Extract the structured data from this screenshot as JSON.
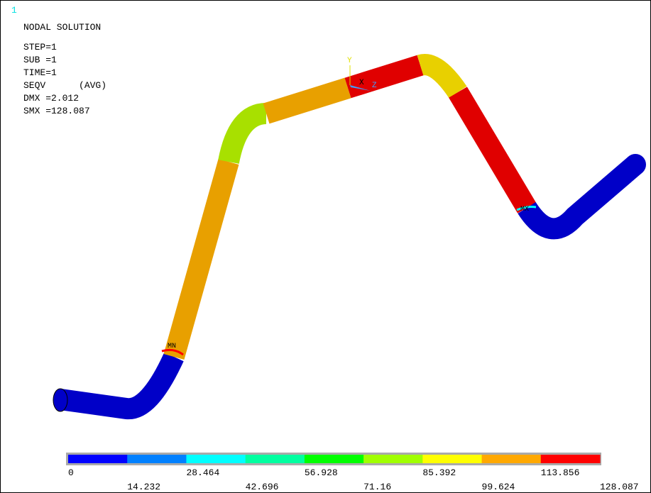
{
  "window_number": "1",
  "header": {
    "title": "NODAL SOLUTION",
    "lines": [
      "STEP=1",
      "SUB =1",
      "TIME=1",
      "SEQV      (AVG)",
      "DMX =2.012",
      "SMX =128.087"
    ]
  },
  "markers": {
    "min": "MN",
    "max": "MX"
  },
  "triad": {
    "y": "Y",
    "x": "X",
    "z": "Z"
  },
  "legend": {
    "colors": [
      "#0000ff",
      "#0080ff",
      "#00ffff",
      "#00ffa0",
      "#00ff00",
      "#a0ff00",
      "#ffff00",
      "#ffa800",
      "#ff0000"
    ],
    "labels": [
      "0",
      "14.232",
      "28.464",
      "42.696",
      "56.928",
      "71.16",
      "85.392",
      "99.624",
      "113.856",
      "128.087"
    ]
  }
}
